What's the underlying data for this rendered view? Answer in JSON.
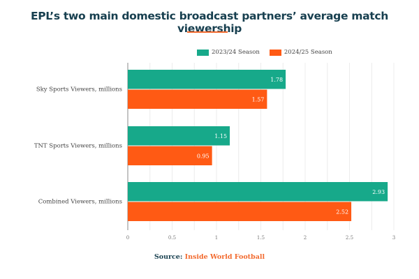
{
  "title": "EPL’s two main domestic broadcast partners’ average match viewership",
  "source": {
    "label": "Source:",
    "name": "Inside World Football"
  },
  "chart_data": {
    "type": "bar",
    "orientation": "horizontal",
    "title": "EPL’s two main domestic broadcast partners’ average match viewership",
    "categories": [
      "Sky Sports Viewers, millions",
      "TNT Sports Viewers, millions",
      "Combined Viewers, millions"
    ],
    "series": [
      {
        "name": "2023/24 Season",
        "color": "#17a98a",
        "values": [
          1.78,
          1.15,
          2.93
        ]
      },
      {
        "name": "2024/25 Season",
        "color": "#ff5a14",
        "values": [
          1.57,
          0.95,
          2.52
        ]
      }
    ],
    "xlim": [
      0,
      3
    ],
    "xticks": [
      "0",
      "0.5",
      "1",
      "1.5",
      "2",
      "2.5",
      "3"
    ],
    "grid": true,
    "legend": "top-right"
  }
}
